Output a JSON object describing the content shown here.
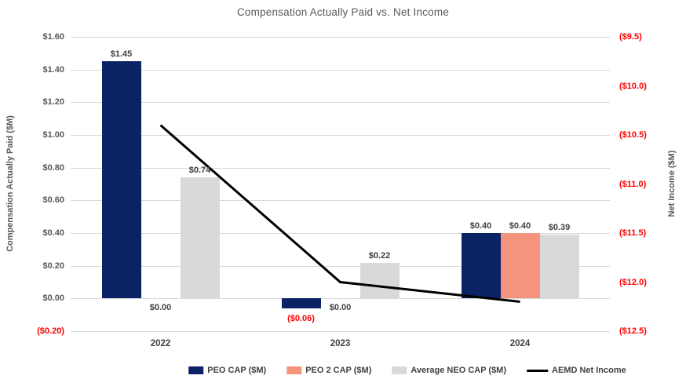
{
  "chart_data": {
    "type": "bar",
    "subtype": "clustered-bars-with-line-overlay-dual-axis",
    "title": "Compensation Actually Paid vs. Net Income",
    "categories": [
      "2022",
      "2023",
      "2024"
    ],
    "series": [
      {
        "name": "PEO CAP ($M)",
        "kind": "bar",
        "axis": "left",
        "color": "#0b2265",
        "values": [
          1.45,
          -0.06,
          0.4
        ],
        "labels": [
          "$1.45",
          "($0.06)",
          "$0.40"
        ]
      },
      {
        "name": "PEO 2 CAP ($M)",
        "kind": "bar",
        "axis": "left",
        "color": "#f5947c",
        "values": [
          0.0,
          0.0,
          0.4
        ],
        "labels": [
          "$0.00",
          "$0.00",
          "$0.40"
        ]
      },
      {
        "name": "Average NEO CAP ($M)",
        "kind": "bar",
        "axis": "left",
        "color": "#d9d9d9",
        "values": [
          0.74,
          0.22,
          0.39
        ],
        "labels": [
          "$0.74",
          "$0.22",
          "$0.39"
        ]
      },
      {
        "name": "AEMD Net Income",
        "kind": "line",
        "axis": "right",
        "color": "#000000",
        "values": [
          -10.4,
          -12.0,
          -12.2
        ]
      }
    ],
    "left_axis": {
      "title": "Compensation Actually Paid ($M)",
      "min": -0.2,
      "max": 1.6,
      "step": 0.2,
      "ticks": [
        "$1.60",
        "$1.40",
        "$1.20",
        "$1.00",
        "$0.80",
        "$0.60",
        "$0.40",
        "$0.20",
        "$0.00",
        "($0.20)"
      ]
    },
    "right_axis": {
      "title": "Net Income ($M)",
      "min": -12.5,
      "max": -9.5,
      "step": 0.5,
      "ticks": [
        "($9.5)",
        "($10.0)",
        "($10.5)",
        "($11.0)",
        "($11.5)",
        "($12.0)",
        "($12.5)"
      ]
    },
    "legend": [
      "PEO CAP ($M)",
      "PEO 2 CAP ($M)",
      "Average NEO CAP ($M)",
      "AEMD Net Income"
    ],
    "legend_position": "bottom",
    "grid": "horizontal",
    "colors": {
      "negative_text": "#ff0000",
      "axis_text": "#595959",
      "label_text": "#404040",
      "category_text": "#404040",
      "gridline": "#d9d9d9",
      "background": "#ffffff"
    }
  }
}
